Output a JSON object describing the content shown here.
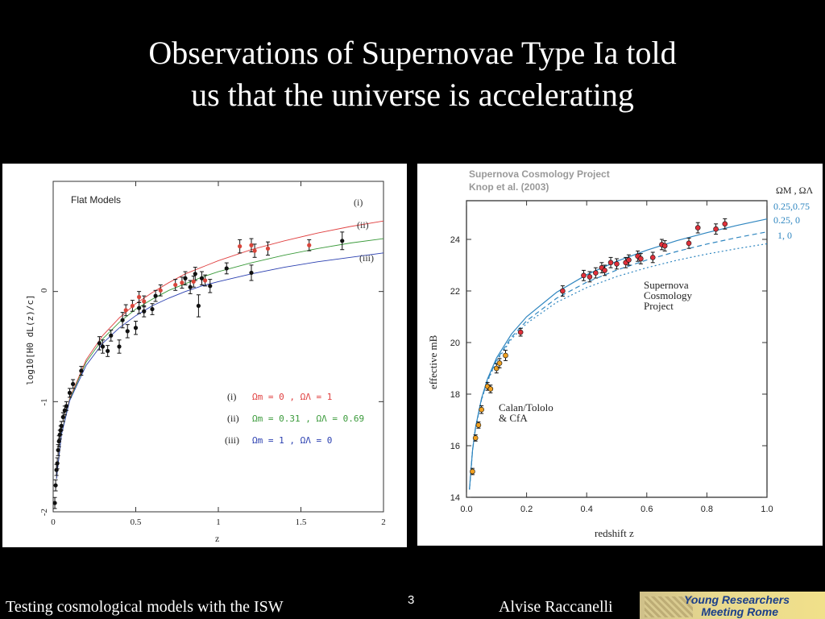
{
  "slide": {
    "title_line1": "Observations of Supernovae Type Ia told",
    "title_line2": "us that the universe is accelerating",
    "footer_left": "Testing cosmological models with the ISW",
    "page_number": "3",
    "footer_author": "Alvise Raccanelli",
    "logo_line1": "Young Researchers",
    "logo_line2": "Meeting Rome"
  },
  "colors": {
    "background": "#000000",
    "curve_i": "#e04040",
    "curve_ii": "#3a9a3a",
    "curve_iii": "#2a3fb0",
    "scp_points": "#e0303a",
    "calan_points": "#f0a020",
    "right_curves": "#2f86c0"
  },
  "chart_data": [
    {
      "type": "scatter",
      "title": "Flat Models",
      "xlabel": "z",
      "ylabel": "log10[H0 dL(z)/c]",
      "xlim": [
        0,
        2
      ],
      "ylim": [
        -2,
        1
      ],
      "x_ticks": [
        0,
        0.5,
        1,
        1.5,
        2
      ],
      "x_tick_labels": [
        "0",
        "0.5",
        "1",
        "1.5",
        "2"
      ],
      "y_ticks": [
        -2,
        -1,
        0
      ],
      "y_tick_labels": [
        "-2",
        "-1",
        "0"
      ],
      "grid": false,
      "curve_labels": [
        "(i)",
        "(ii)",
        "(iii)"
      ],
      "legend": [
        {
          "id": "(i)",
          "text": "Ωm = 0 , ΩΛ = 1"
        },
        {
          "id": "(ii)",
          "text": "Ωm = 0.31 , ΩΛ = 0.69"
        },
        {
          "id": "(iii)",
          "text": "Ωm = 1 , ΩΛ = 0"
        }
      ],
      "legend_position": "lower-right",
      "series": [
        {
          "name": "(i)",
          "kind": "curve",
          "x": [
            0.02,
            0.05,
            0.1,
            0.2,
            0.3,
            0.4,
            0.5,
            0.6,
            0.7,
            0.8,
            0.9,
            1.0,
            1.2,
            1.4,
            1.6,
            1.8,
            2.0
          ],
          "y": [
            -1.7,
            -1.29,
            -0.97,
            -0.62,
            -0.4,
            -0.24,
            -0.11,
            -0.01,
            0.08,
            0.16,
            0.22,
            0.28,
            0.38,
            0.46,
            0.53,
            0.59,
            0.64
          ]
        },
        {
          "name": "(ii)",
          "kind": "curve",
          "x": [
            0.02,
            0.05,
            0.1,
            0.2,
            0.3,
            0.4,
            0.5,
            0.6,
            0.7,
            0.8,
            0.9,
            1.0,
            1.2,
            1.4,
            1.6,
            1.8,
            2.0
          ],
          "y": [
            -1.7,
            -1.29,
            -0.98,
            -0.64,
            -0.43,
            -0.28,
            -0.16,
            -0.07,
            0.01,
            0.07,
            0.13,
            0.18,
            0.26,
            0.33,
            0.39,
            0.44,
            0.48
          ]
        },
        {
          "name": "(iii)",
          "kind": "curve",
          "x": [
            0.02,
            0.05,
            0.1,
            0.2,
            0.3,
            0.4,
            0.5,
            0.6,
            0.7,
            0.8,
            0.9,
            1.0,
            1.2,
            1.4,
            1.6,
            1.8,
            2.0
          ],
          "y": [
            -1.7,
            -1.3,
            -0.99,
            -0.67,
            -0.47,
            -0.33,
            -0.22,
            -0.13,
            -0.06,
            0.0,
            0.05,
            0.09,
            0.16,
            0.22,
            0.27,
            0.31,
            0.35
          ]
        },
        {
          "name": "black",
          "kind": "points",
          "x": [
            0.01,
            0.015,
            0.02,
            0.025,
            0.03,
            0.035,
            0.04,
            0.045,
            0.05,
            0.06,
            0.07,
            0.08,
            0.1,
            0.12,
            0.17,
            0.28,
            0.3,
            0.33,
            0.35,
            0.4,
            0.42,
            0.45,
            0.5,
            0.52,
            0.55,
            0.6,
            0.62,
            0.8,
            0.83,
            0.86,
            0.88,
            0.9,
            0.95,
            1.05,
            1.2,
            1.75
          ],
          "y": [
            -1.92,
            -1.76,
            -1.62,
            -1.56,
            -1.44,
            -1.36,
            -1.3,
            -1.26,
            -1.22,
            -1.14,
            -1.08,
            -1.04,
            -0.92,
            -0.84,
            -0.72,
            -0.47,
            -0.5,
            -0.54,
            -0.4,
            -0.5,
            -0.26,
            -0.36,
            -0.33,
            -0.15,
            -0.18,
            -0.16,
            -0.04,
            0.12,
            0.04,
            0.16,
            -0.13,
            0.12,
            0.05,
            0.21,
            0.17,
            0.46
          ],
          "err": [
            0.05,
            0.05,
            0.05,
            0.05,
            0.05,
            0.05,
            0.04,
            0.04,
            0.04,
            0.04,
            0.04,
            0.04,
            0.04,
            0.04,
            0.04,
            0.06,
            0.06,
            0.05,
            0.05,
            0.06,
            0.07,
            0.06,
            0.06,
            0.05,
            0.05,
            0.05,
            0.05,
            0.06,
            0.06,
            0.06,
            0.1,
            0.06,
            0.06,
            0.05,
            0.07,
            0.08
          ]
        },
        {
          "name": "red",
          "kind": "points",
          "x": [
            0.44,
            0.48,
            0.52,
            0.55,
            0.65,
            0.74,
            0.78,
            0.85,
            0.92,
            1.13,
            1.2,
            1.22,
            1.3,
            1.55
          ],
          "y": [
            -0.17,
            -0.13,
            -0.05,
            -0.09,
            0.01,
            0.06,
            0.08,
            0.09,
            0.1,
            0.41,
            0.42,
            0.37,
            0.39,
            0.42
          ],
          "err": [
            0.05,
            0.05,
            0.05,
            0.05,
            0.05,
            0.05,
            0.05,
            0.05,
            0.05,
            0.06,
            0.06,
            0.06,
            0.06,
            0.05
          ]
        }
      ]
    },
    {
      "type": "scatter",
      "title": "Supernova Cosmology Project",
      "subtitle": "Knop et al. (2003)",
      "xlabel": "redshift  z",
      "ylabel": "effective  mB",
      "xlim": [
        0,
        1
      ],
      "ylim": [
        14,
        25.5
      ],
      "x_ticks": [
        0,
        0.2,
        0.4,
        0.6,
        0.8,
        1.0
      ],
      "x_tick_labels": [
        "0.0",
        "0.2",
        "0.4",
        "0.6",
        "0.8",
        "1.0"
      ],
      "y_ticks": [
        14,
        16,
        18,
        20,
        22,
        24
      ],
      "y_tick_labels": [
        "14",
        "16",
        "18",
        "20",
        "22",
        "24"
      ],
      "grid": false,
      "legend_header": "ΩM , ΩΛ",
      "legend": [
        "0.25,0.75",
        "0.25, 0",
        "1,    0"
      ],
      "legend_position": "top-right",
      "annotations": [
        {
          "text": [
            "Supernova",
            "Cosmology",
            "Project"
          ]
        },
        {
          "text": [
            "Calan/Tololo",
            "& CfA"
          ]
        }
      ],
      "series": [
        {
          "name": "0.25,0.75",
          "kind": "curve",
          "style": "solid",
          "x": [
            0.01,
            0.02,
            0.03,
            0.05,
            0.07,
            0.1,
            0.15,
            0.2,
            0.3,
            0.4,
            0.5,
            0.6,
            0.7,
            0.8,
            0.9,
            1.0
          ],
          "y": [
            14.31,
            15.82,
            16.71,
            17.84,
            18.59,
            19.4,
            20.33,
            21.0,
            21.95,
            22.63,
            23.15,
            23.58,
            23.95,
            24.26,
            24.54,
            24.79
          ]
        },
        {
          "name": "0.25, 0",
          "kind": "curve",
          "style": "dashed",
          "x": [
            0.01,
            0.02,
            0.03,
            0.05,
            0.07,
            0.1,
            0.15,
            0.2,
            0.3,
            0.4,
            0.5,
            0.6,
            0.7,
            0.8,
            0.9,
            1.0
          ],
          "y": [
            14.3,
            15.81,
            16.69,
            17.8,
            18.53,
            19.32,
            20.21,
            20.84,
            21.72,
            22.34,
            22.81,
            23.2,
            23.53,
            23.82,
            24.07,
            24.29
          ]
        },
        {
          "name": "1,    0",
          "kind": "curve",
          "style": "dotted",
          "x": [
            0.01,
            0.02,
            0.03,
            0.05,
            0.07,
            0.1,
            0.15,
            0.2,
            0.3,
            0.4,
            0.5,
            0.6,
            0.7,
            0.8,
            0.9,
            1.0
          ],
          "y": [
            14.3,
            15.8,
            16.68,
            17.78,
            18.5,
            19.27,
            20.14,
            20.74,
            21.56,
            22.13,
            22.56,
            22.9,
            23.19,
            23.43,
            23.64,
            23.83
          ]
        },
        {
          "name": "Calan/Tololo & CfA",
          "kind": "points",
          "x": [
            0.02,
            0.03,
            0.04,
            0.05,
            0.07,
            0.08,
            0.1,
            0.11,
            0.13
          ],
          "y": [
            15.0,
            16.3,
            16.8,
            17.4,
            18.3,
            18.2,
            19.0,
            19.2,
            19.5
          ],
          "err": [
            0.12,
            0.12,
            0.12,
            0.15,
            0.15,
            0.15,
            0.18,
            0.18,
            0.2
          ]
        },
        {
          "name": "Supernova Cosmology Project",
          "kind": "points",
          "x": [
            0.18,
            0.32,
            0.39,
            0.41,
            0.43,
            0.45,
            0.46,
            0.48,
            0.5,
            0.53,
            0.54,
            0.57,
            0.58,
            0.62,
            0.65,
            0.66,
            0.74,
            0.77,
            0.83,
            0.86
          ],
          "y": [
            20.4,
            22.0,
            22.6,
            22.55,
            22.7,
            22.9,
            22.8,
            23.1,
            23.05,
            23.1,
            23.2,
            23.35,
            23.25,
            23.3,
            23.8,
            23.75,
            23.85,
            24.45,
            24.4,
            24.6
          ],
          "err": [
            0.15,
            0.2,
            0.2,
            0.2,
            0.2,
            0.2,
            0.2,
            0.2,
            0.2,
            0.2,
            0.2,
            0.2,
            0.2,
            0.2,
            0.2,
            0.2,
            0.2,
            0.2,
            0.2,
            0.2
          ]
        }
      ]
    }
  ]
}
